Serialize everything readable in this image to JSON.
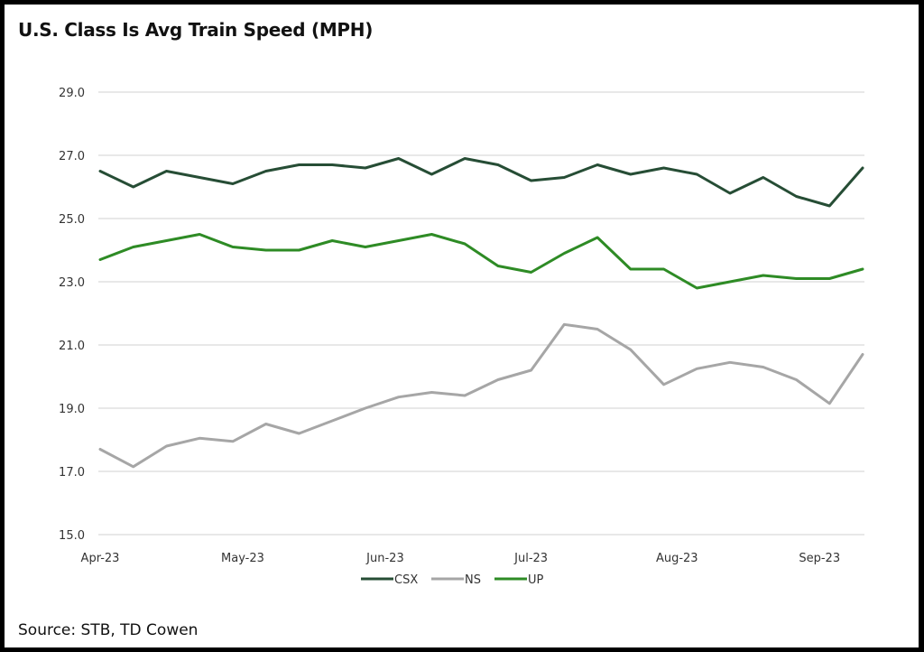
{
  "title": "U.S. Class Is Avg Train Speed (MPH)",
  "source": "Source: STB, TD Cowen",
  "chart_data": {
    "type": "line",
    "title": "U.S. Class Is Avg Train Speed (MPH)",
    "xlabel": "",
    "ylabel": "",
    "ylim": [
      15.0,
      29.0
    ],
    "yticks": [
      "15.0",
      "17.0",
      "19.0",
      "21.0",
      "23.0",
      "25.0",
      "27.0",
      "29.0"
    ],
    "ytick_values": [
      15,
      17,
      19,
      21,
      23,
      25,
      27,
      29
    ],
    "grid": true,
    "legend": "bottom",
    "xtick_labels": [
      {
        "label": "Apr-23",
        "index": 0
      },
      {
        "label": "May-23",
        "index": 4.3
      },
      {
        "label": "Jun-23",
        "index": 8.6
      },
      {
        "label": "Jul-23",
        "index": 13
      },
      {
        "label": "Aug-23",
        "index": 17.4
      },
      {
        "label": "Sep-23",
        "index": 21.7
      }
    ],
    "x_count": 24,
    "series": [
      {
        "name": "CSX",
        "color": "#264d35",
        "values": [
          26.5,
          26.0,
          26.5,
          26.3,
          26.1,
          26.5,
          26.7,
          26.7,
          26.6,
          26.9,
          26.4,
          26.9,
          26.7,
          26.2,
          26.3,
          26.7,
          26.4,
          26.6,
          26.4,
          25.8,
          26.3,
          25.7,
          25.4,
          26.6
        ]
      },
      {
        "name": "NS",
        "color": "#a6a6a6",
        "values": [
          17.7,
          17.15,
          17.8,
          18.05,
          17.95,
          18.5,
          18.2,
          18.6,
          19.0,
          19.35,
          19.5,
          19.4,
          19.9,
          20.2,
          21.65,
          21.5,
          20.85,
          19.75,
          20.25,
          20.45,
          20.3,
          19.9,
          19.15,
          20.7
        ]
      },
      {
        "name": "UP",
        "color": "#2e8b25",
        "values": [
          23.7,
          24.1,
          24.3,
          24.5,
          24.1,
          24.0,
          24.0,
          24.3,
          24.1,
          24.3,
          24.5,
          24.2,
          23.5,
          23.3,
          23.9,
          24.4,
          23.4,
          23.4,
          22.8,
          23.0,
          23.2,
          23.1,
          23.1,
          23.4
        ]
      }
    ]
  }
}
